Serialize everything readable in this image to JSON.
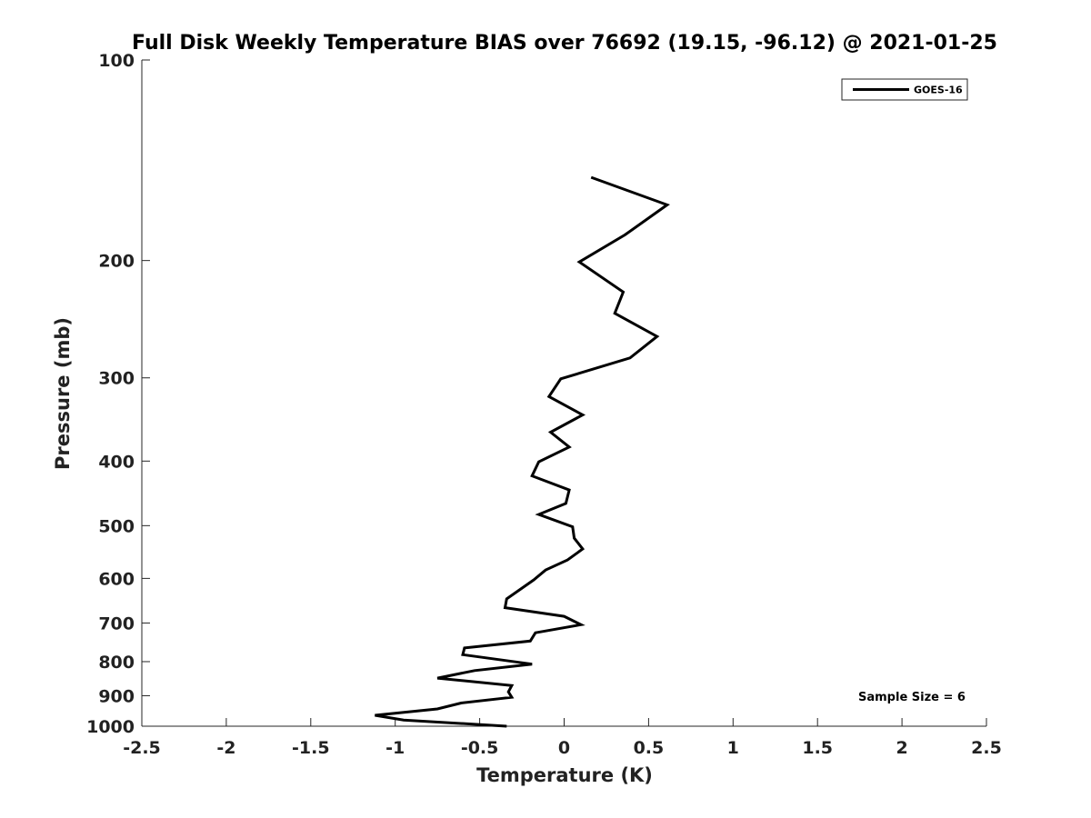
{
  "chart_data": {
    "type": "line",
    "title": "Full Disk Weekly Temperature BIAS over 76692 (19.15, -96.12) @ 2021-01-25",
    "xlabel": "Temperature (K)",
    "ylabel": "Pressure (mb)",
    "xlim": [
      -2.5,
      2.5
    ],
    "ylim": [
      1000,
      100
    ],
    "y_scale": "log",
    "y_reversed": true,
    "grid": false,
    "legend_position": "top-right",
    "x_ticks": [
      -2.5,
      -2,
      -1.5,
      -1,
      -0.5,
      0,
      0.5,
      1,
      1.5,
      2,
      2.5
    ],
    "x_tick_labels": [
      "-2.5",
      "-2",
      "-1.5",
      "-1",
      "-0.5",
      "0",
      "0.5",
      "1",
      "1.5",
      "2",
      "2.5"
    ],
    "y_ticks": [
      100,
      200,
      300,
      400,
      500,
      600,
      700,
      800,
      900,
      1000
    ],
    "y_tick_labels": [
      "100",
      "200",
      "300",
      "400",
      "500",
      "600",
      "700",
      "800",
      "900",
      "1000"
    ],
    "annotation": "Sample Size = 6",
    "series": [
      {
        "name": "GOES-16",
        "color": "#000000",
        "points": [
          {
            "x": 0.16,
            "p": 150
          },
          {
            "x": 0.61,
            "p": 165
          },
          {
            "x": 0.36,
            "p": 183
          },
          {
            "x": 0.09,
            "p": 201
          },
          {
            "x": 0.35,
            "p": 223
          },
          {
            "x": 0.3,
            "p": 240
          },
          {
            "x": 0.55,
            "p": 260
          },
          {
            "x": 0.39,
            "p": 280
          },
          {
            "x": -0.02,
            "p": 301
          },
          {
            "x": -0.09,
            "p": 320
          },
          {
            "x": 0.11,
            "p": 341
          },
          {
            "x": -0.08,
            "p": 362
          },
          {
            "x": 0.03,
            "p": 381
          },
          {
            "x": -0.15,
            "p": 401
          },
          {
            "x": -0.19,
            "p": 421
          },
          {
            "x": 0.03,
            "p": 442
          },
          {
            "x": 0.01,
            "p": 463
          },
          {
            "x": -0.15,
            "p": 481
          },
          {
            "x": 0.05,
            "p": 502
          },
          {
            "x": 0.06,
            "p": 522
          },
          {
            "x": 0.11,
            "p": 542
          },
          {
            "x": 0.02,
            "p": 563
          },
          {
            "x": -0.11,
            "p": 583
          },
          {
            "x": -0.18,
            "p": 603
          },
          {
            "x": -0.34,
            "p": 644
          },
          {
            "x": -0.35,
            "p": 664
          },
          {
            "x": 0.0,
            "p": 684
          },
          {
            "x": 0.1,
            "p": 704
          },
          {
            "x": -0.17,
            "p": 724
          },
          {
            "x": -0.2,
            "p": 745
          },
          {
            "x": -0.59,
            "p": 763
          },
          {
            "x": -0.6,
            "p": 781
          },
          {
            "x": -0.19,
            "p": 807
          },
          {
            "x": -0.53,
            "p": 825
          },
          {
            "x": -0.75,
            "p": 847
          },
          {
            "x": -0.31,
            "p": 869
          },
          {
            "x": -0.33,
            "p": 888
          },
          {
            "x": -0.31,
            "p": 905
          },
          {
            "x": -0.61,
            "p": 923
          },
          {
            "x": -0.75,
            "p": 942
          },
          {
            "x": -1.12,
            "p": 963
          },
          {
            "x": -0.95,
            "p": 979
          },
          {
            "x": -0.34,
            "p": 1000
          }
        ]
      }
    ]
  }
}
